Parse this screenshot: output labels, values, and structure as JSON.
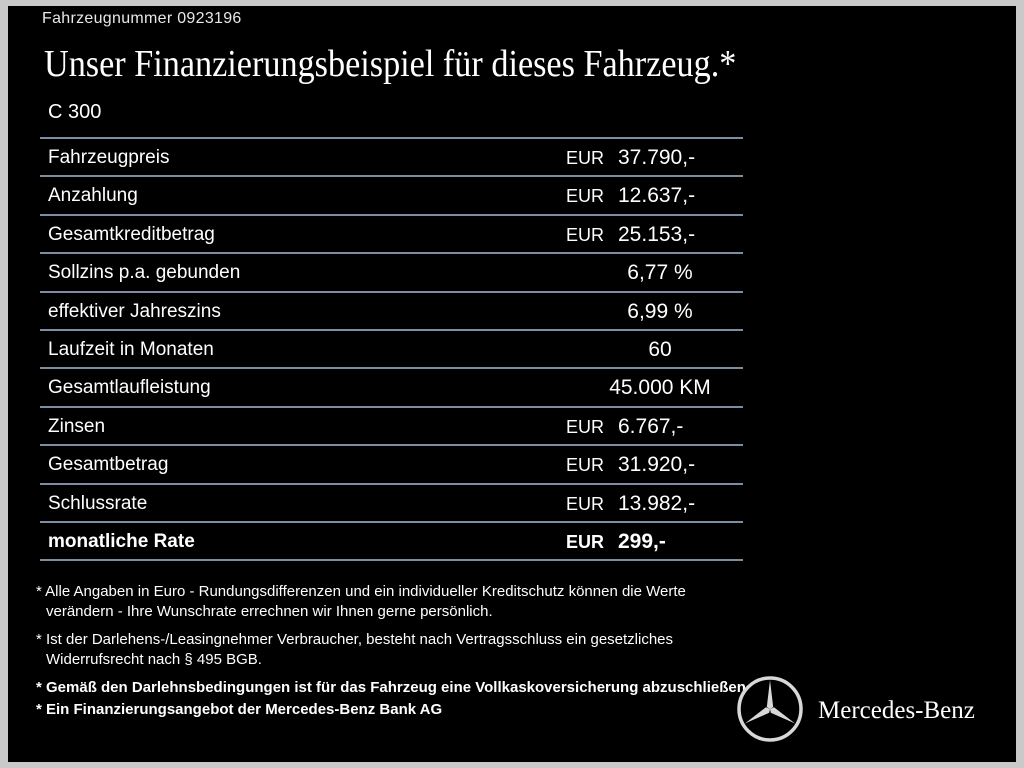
{
  "header": {
    "vehicle_number": "Fahrzeugnummer  0923196",
    "title": "Unser Finanzierungsbeispiel für dieses Fahrzeug.*",
    "model": "C 300"
  },
  "table": {
    "rows": [
      [
        "Fahrzeugpreis",
        "EUR",
        "37.790,-"
      ],
      [
        "Anzahlung",
        "EUR",
        "12.637,-"
      ],
      [
        "Gesamtkreditbetrag",
        "EUR",
        "25.153,-"
      ],
      [
        "Sollzins p.a. gebunden",
        null,
        "6,77 %"
      ],
      [
        "effektiver Jahreszins",
        null,
        "6,99 %"
      ],
      [
        "Laufzeit in Monaten",
        null,
        "60"
      ],
      [
        "Gesamtlaufleistung",
        null,
        "45.000 KM"
      ],
      [
        "Zinsen",
        "EUR",
        "6.767,-"
      ],
      [
        "Gesamtbetrag",
        "EUR",
        "31.920,-"
      ],
      [
        "Schlussrate",
        "EUR",
        "13.982,-"
      ],
      [
        "monatliche Rate",
        "EUR",
        "299,-"
      ]
    ]
  },
  "notes": [
    "* Alle Angaben in Euro - Rundungsdifferenzen und ein individueller Kreditschutz können die Werte verändern - Ihre Wunschrate errechnen wir Ihnen gerne persönlich.",
    "* Ist der Darlehens-/Leasingnehmer Verbraucher, besteht nach Vertragsschluss ein gesetzliches Widerrufsrecht nach § 495 BGB.",
    "* Gemäß den Darlehnsbedingungen ist für das Fahrzeug eine Vollkaskoversicherung abzuschließen",
    "* Ein Finanzierungsangebot der Mercedes-Benz Bank AG"
  ],
  "brand": "Mercedes-Benz"
}
